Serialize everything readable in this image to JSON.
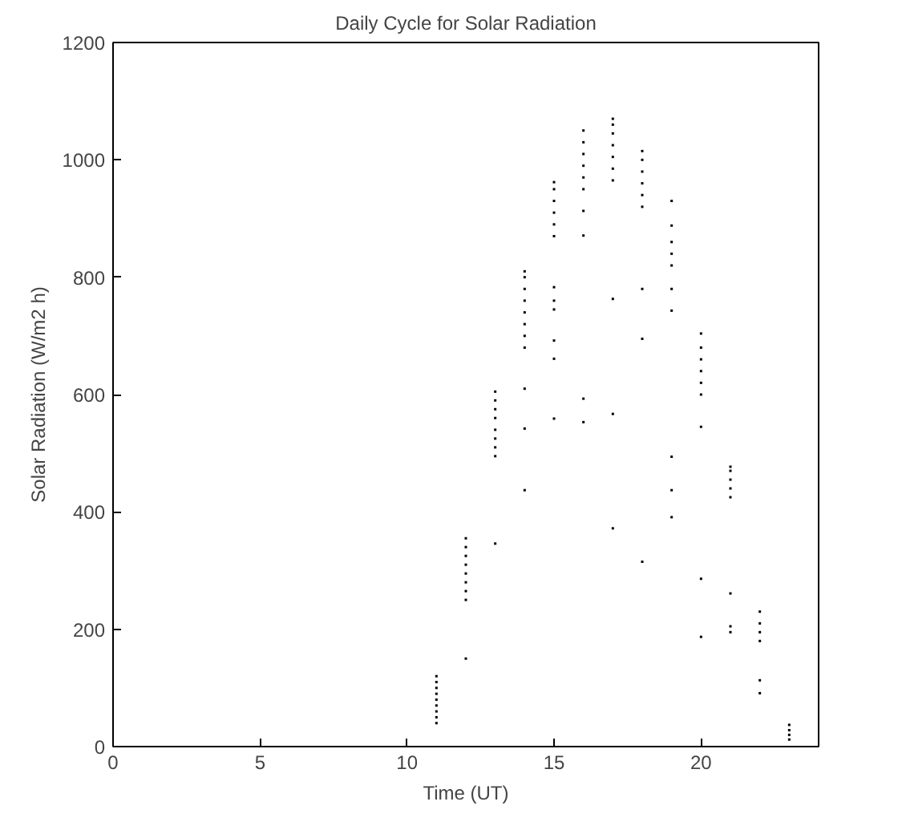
{
  "chart_data": {
    "type": "scatter",
    "title": "Daily Cycle for Solar Radiation",
    "xlabel": "Time (UT)",
    "ylabel": "Solar Radiation (W/m2 h)",
    "xlim": [
      0,
      24
    ],
    "xticks": [
      0,
      5,
      10,
      15,
      20
    ],
    "ylim": [
      0,
      1200
    ],
    "yticks": [
      0,
      200,
      400,
      600,
      800,
      1000,
      1200
    ],
    "grid": false,
    "marker": "square",
    "series": [
      {
        "color": "#000000",
        "x": [
          11,
          11,
          11,
          11,
          11,
          11,
          11,
          11,
          11,
          12,
          12,
          12,
          12,
          12,
          12,
          12,
          12,
          12,
          13,
          13,
          13,
          13,
          13,
          13,
          13,
          13,
          13,
          14,
          14,
          14,
          14,
          14,
          14,
          14,
          14,
          14,
          14,
          14,
          15,
          15,
          15,
          15,
          15,
          15,
          15,
          15,
          15,
          15,
          15,
          15,
          16,
          16,
          16,
          16,
          16,
          16,
          16,
          16,
          16,
          16,
          17,
          17,
          17,
          17,
          17,
          17,
          17,
          17,
          17,
          17,
          18,
          18,
          18,
          18,
          18,
          18,
          18,
          18,
          18,
          19,
          19,
          19,
          19,
          19,
          19,
          19,
          19,
          19,
          19,
          20,
          20,
          20,
          20,
          20,
          20,
          20,
          20,
          20,
          21,
          21,
          21,
          21,
          21,
          21,
          21,
          21,
          22,
          22,
          22,
          22,
          22,
          22,
          23,
          23,
          23,
          23
        ],
        "values": [
          40,
          50,
          60,
          70,
          80,
          90,
          100,
          110,
          120,
          150,
          250,
          265,
          280,
          295,
          310,
          325,
          340,
          355,
          346,
          495,
          510,
          525,
          540,
          560,
          575,
          590,
          605,
          437,
          542,
          610,
          680,
          700,
          720,
          740,
          760,
          780,
          800,
          810,
          559,
          661,
          692,
          745,
          760,
          783,
          870,
          890,
          910,
          930,
          950,
          962,
          553,
          593,
          871,
          913,
          950,
          970,
          990,
          1010,
          1030,
          1050,
          372,
          567,
          763,
          965,
          985,
          1005,
          1025,
          1045,
          1060,
          1070,
          315,
          695,
          780,
          920,
          940,
          960,
          980,
          1000,
          1015,
          391,
          437,
          494,
          743,
          780,
          820,
          840,
          860,
          888,
          930,
          187,
          286,
          545,
          600,
          620,
          640,
          660,
          680,
          704,
          195,
          205,
          261,
          425,
          440,
          455,
          470,
          477,
          91,
          113,
          180,
          195,
          210,
          230,
          12,
          20,
          28,
          37
        ]
      }
    ]
  }
}
